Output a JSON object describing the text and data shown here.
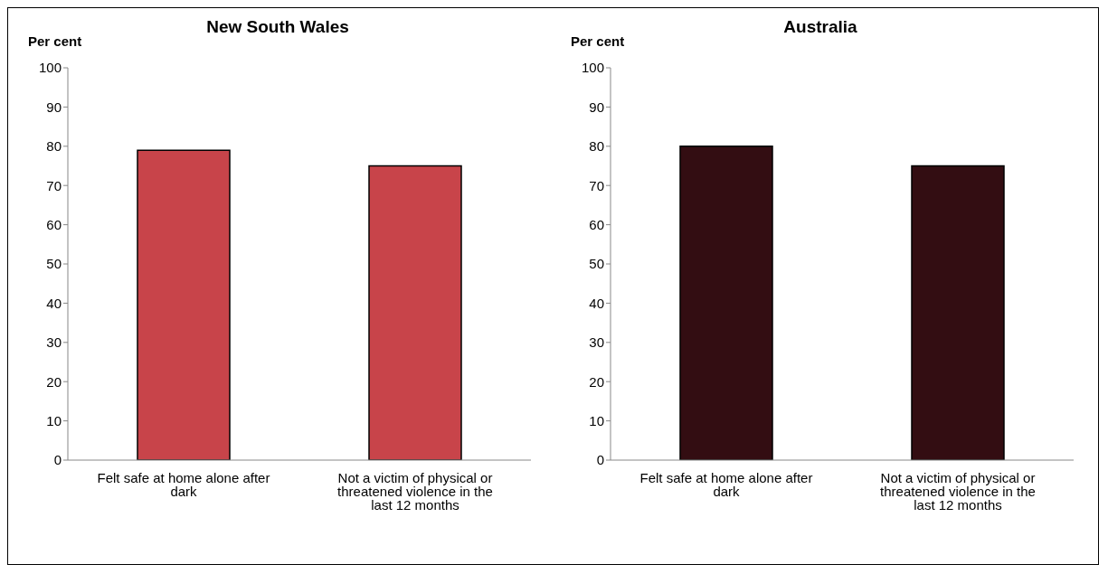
{
  "chart_data": [
    {
      "type": "bar",
      "title": "New South Wales",
      "ylabel": "Per cent",
      "categories": [
        "Felt safe at home alone after dark",
        "Not a victim of physical or threatened violence in the last 12 months"
      ],
      "values": [
        79,
        75
      ],
      "color": "#c8444a",
      "ylim": [
        0,
        100
      ],
      "yticks": [
        0,
        10,
        20,
        30,
        40,
        50,
        60,
        70,
        80,
        90,
        100
      ],
      "grid": false,
      "legend": false
    },
    {
      "type": "bar",
      "title": "Australia",
      "ylabel": "Per cent",
      "categories": [
        "Felt safe at home alone after dark",
        "Not a victim of physical or threatened violence in the last 12 months"
      ],
      "values": [
        80,
        75
      ],
      "color": "#330d12",
      "ylim": [
        0,
        100
      ],
      "yticks": [
        0,
        10,
        20,
        30,
        40,
        50,
        60,
        70,
        80,
        90,
        100
      ],
      "grid": false,
      "legend": false
    }
  ]
}
